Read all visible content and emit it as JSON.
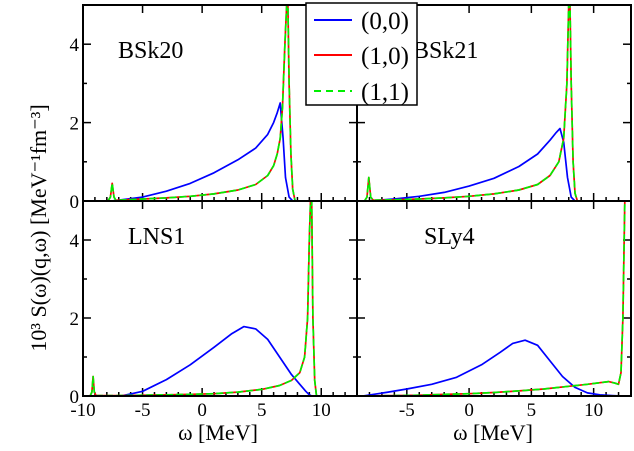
{
  "figure": {
    "ylabel": "10³ S(ω)(q,ω) [MeV⁻¹fm⁻³]",
    "xlabel_left": "ω [MeV]",
    "xlabel_right": "ω [MeV]"
  },
  "legend": [
    {
      "label": "(0,0)",
      "color": "#0000ff",
      "dash": "solid"
    },
    {
      "label": "(1,0)",
      "color": "#ff0000",
      "dash": "solid"
    },
    {
      "label": "(1,1)",
      "color": "#00ee00",
      "dash": "dashed"
    }
  ],
  "chart_data": [
    {
      "type": "line",
      "panel": "top-left",
      "annotation": "BSk20",
      "xlim": [
        -10,
        13
      ],
      "ylim": [
        0,
        5
      ],
      "xticks": [
        -10,
        -5,
        0,
        5,
        10
      ],
      "yticks": [
        0,
        2,
        4
      ],
      "series": [
        {
          "name": "(0,0)",
          "x": [
            -7.6,
            -5,
            -3,
            -1,
            1,
            3,
            4.5,
            5.5,
            6.0,
            6.3,
            6.55,
            6.8,
            7.0,
            7.3,
            7.6
          ],
          "y": [
            0.0,
            0.1,
            0.25,
            0.45,
            0.72,
            1.05,
            1.35,
            1.7,
            2.0,
            2.25,
            2.5,
            1.6,
            0.6,
            0.1,
            0.0
          ]
        },
        {
          "name": "(1,0)",
          "x": [
            -7.9,
            -7.7,
            -7.55,
            -7.4,
            -7.25,
            -7.0,
            -5,
            -3,
            -1,
            1,
            3,
            4.5,
            5.5,
            6.0,
            6.3,
            6.55,
            6.75,
            6.95,
            7.1,
            7.2,
            7.3,
            7.45,
            7.6,
            7.8
          ],
          "y": [
            0.0,
            0.1,
            0.45,
            0.1,
            0.02,
            0.02,
            0.05,
            0.08,
            0.12,
            0.18,
            0.28,
            0.42,
            0.65,
            0.9,
            1.2,
            1.6,
            2.4,
            4.0,
            5.0,
            5.0,
            3.0,
            1.2,
            0.3,
            0.0
          ]
        },
        {
          "name": "(1,1)",
          "x": [
            -7.9,
            -7.7,
            -7.55,
            -7.4,
            -7.25,
            -7.0,
            -5,
            -3,
            -1,
            1,
            3,
            4.5,
            5.5,
            6.0,
            6.3,
            6.55,
            6.75,
            6.95,
            7.1,
            7.2,
            7.3,
            7.45,
            7.6,
            7.8
          ],
          "y": [
            0.0,
            0.1,
            0.45,
            0.1,
            0.02,
            0.02,
            0.05,
            0.08,
            0.12,
            0.18,
            0.28,
            0.42,
            0.65,
            0.9,
            1.2,
            1.6,
            2.4,
            4.0,
            5.0,
            5.0,
            3.0,
            1.2,
            0.3,
            0.0
          ]
        }
      ]
    },
    {
      "type": "line",
      "panel": "top-right",
      "annotation": "BSk21",
      "xlim": [
        -9,
        13
      ],
      "ylim": [
        0,
        5
      ],
      "xticks": [
        -5,
        0,
        5,
        10
      ],
      "yticks": [
        0,
        2,
        4
      ],
      "series": [
        {
          "name": "(0,0)",
          "x": [
            -8.2,
            -6,
            -4,
            -2,
            0,
            2,
            4,
            5.5,
            6.5,
            7.0,
            7.3,
            7.6,
            7.9,
            8.2,
            8.5
          ],
          "y": [
            0.0,
            0.05,
            0.12,
            0.22,
            0.38,
            0.58,
            0.88,
            1.2,
            1.55,
            1.75,
            1.85,
            1.5,
            0.6,
            0.1,
            0.0
          ]
        },
        {
          "name": "(1,0)",
          "x": [
            -8.4,
            -8.2,
            -8.05,
            -7.9,
            -7.7,
            -6,
            -4,
            -2,
            0,
            2,
            4,
            5.5,
            6.5,
            7.2,
            7.6,
            7.85,
            8.0,
            8.1,
            8.2,
            8.35,
            8.5,
            8.7
          ],
          "y": [
            0.0,
            0.1,
            0.6,
            0.1,
            0.02,
            0.03,
            0.05,
            0.08,
            0.12,
            0.18,
            0.28,
            0.42,
            0.65,
            1.0,
            1.6,
            3.0,
            5.0,
            5.0,
            3.0,
            1.0,
            0.2,
            0.0
          ]
        },
        {
          "name": "(1,1)",
          "x": [
            -8.4,
            -8.2,
            -8.05,
            -7.9,
            -7.7,
            -6,
            -4,
            -2,
            0,
            2,
            4,
            5.5,
            6.5,
            7.2,
            7.6,
            7.85,
            8.0,
            8.1,
            8.2,
            8.35,
            8.5,
            8.7
          ],
          "y": [
            0.0,
            0.1,
            0.6,
            0.1,
            0.02,
            0.03,
            0.05,
            0.08,
            0.12,
            0.18,
            0.28,
            0.42,
            0.65,
            1.0,
            1.6,
            3.0,
            5.0,
            5.0,
            3.0,
            1.0,
            0.2,
            0.0
          ]
        }
      ]
    },
    {
      "type": "line",
      "panel": "bottom-left",
      "annotation": "LNS1",
      "xlim": [
        -10,
        13
      ],
      "ylim": [
        0,
        5
      ],
      "xticks": [
        -10,
        -5,
        0,
        5,
        10
      ],
      "yticks": [
        0,
        2,
        4
      ],
      "series": [
        {
          "name": "(0,0)",
          "x": [
            -6.8,
            -5,
            -3,
            -1,
            1,
            2.5,
            3.5,
            4.5,
            5.5,
            6.5,
            7.5,
            8.2,
            8.7,
            9.0,
            9.2
          ],
          "y": [
            0.0,
            0.12,
            0.42,
            0.8,
            1.25,
            1.6,
            1.78,
            1.72,
            1.45,
            1.0,
            0.55,
            0.3,
            0.12,
            0.03,
            0.0
          ]
        },
        {
          "name": "(1,0)",
          "x": [
            -9.4,
            -9.25,
            -9.15,
            -9.05,
            -8.9,
            -7,
            -5,
            -3,
            -1,
            1,
            3,
            5,
            6.5,
            7.5,
            8.2,
            8.6,
            8.85,
            9.0,
            9.1,
            9.2,
            9.3,
            9.45,
            9.6
          ],
          "y": [
            0.0,
            0.1,
            0.5,
            0.1,
            0.01,
            0.01,
            0.02,
            0.03,
            0.04,
            0.06,
            0.1,
            0.17,
            0.27,
            0.4,
            0.6,
            1.0,
            2.0,
            4.0,
            5.0,
            5.0,
            2.0,
            0.4,
            0.0
          ]
        },
        {
          "name": "(1,1)",
          "x": [
            -9.4,
            -9.25,
            -9.15,
            -9.05,
            -8.9,
            -7,
            -5,
            -3,
            -1,
            1,
            3,
            5,
            6.5,
            7.5,
            8.2,
            8.6,
            8.85,
            9.0,
            9.1,
            9.2,
            9.3,
            9.45,
            9.6
          ],
          "y": [
            0.0,
            0.1,
            0.5,
            0.1,
            0.01,
            0.01,
            0.02,
            0.03,
            0.04,
            0.06,
            0.1,
            0.17,
            0.27,
            0.4,
            0.6,
            1.0,
            2.0,
            4.0,
            5.0,
            5.0,
            2.0,
            0.4,
            0.0
          ]
        }
      ]
    },
    {
      "type": "line",
      "panel": "bottom-right",
      "annotation": "SLy4",
      "xlim": [
        -9,
        13
      ],
      "ylim": [
        0,
        5
      ],
      "xticks": [
        -5,
        0,
        5,
        10
      ],
      "yticks": [
        0,
        2,
        4
      ],
      "series": [
        {
          "name": "(0,0)",
          "x": [
            -8.5,
            -6.5,
            -5,
            -3,
            -1,
            1,
            2.5,
            3.5,
            4.5,
            5.5,
            6.5,
            7.5,
            8.5,
            9.5,
            10.5,
            11.5,
            12.2
          ],
          "y": [
            0.0,
            0.1,
            0.18,
            0.3,
            0.48,
            0.8,
            1.12,
            1.35,
            1.43,
            1.3,
            0.9,
            0.5,
            0.22,
            0.08,
            0.03,
            0.01,
            0.0
          ]
        },
        {
          "name": "(1,0)",
          "x": [
            -8.5,
            -6,
            -4,
            -2,
            0,
            2,
            4,
            6,
            8,
            9.5,
            10.5,
            11.2,
            11.7,
            12.0,
            12.2,
            12.35,
            12.5,
            12.65
          ],
          "y": [
            0.0,
            0.01,
            0.02,
            0.04,
            0.06,
            0.09,
            0.13,
            0.18,
            0.25,
            0.3,
            0.34,
            0.37,
            0.33,
            0.3,
            0.6,
            2.0,
            5.0,
            5.0
          ]
        },
        {
          "name": "(1,1)",
          "x": [
            -8.5,
            -6,
            -4,
            -2,
            0,
            2,
            4,
            6,
            8,
            9.5,
            10.5,
            11.2,
            11.7,
            12.0,
            12.2,
            12.35,
            12.5,
            12.65
          ],
          "y": [
            0.0,
            0.01,
            0.02,
            0.04,
            0.06,
            0.09,
            0.13,
            0.18,
            0.25,
            0.3,
            0.34,
            0.37,
            0.33,
            0.3,
            0.6,
            2.0,
            5.0,
            5.0
          ]
        }
      ]
    }
  ]
}
